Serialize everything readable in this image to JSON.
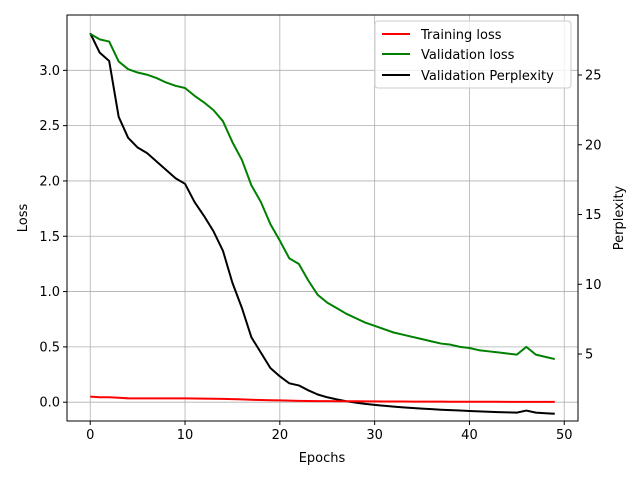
{
  "chart_data": {
    "type": "line",
    "xlabel": "Epochs",
    "ylabel": "Loss",
    "y2label": "Perplexity",
    "xlim": [
      -2.45,
      51.45
    ],
    "ylim": [
      -0.17,
      3.5
    ],
    "y2lim": [
      0.2,
      29.3
    ],
    "x_ticks": [
      0,
      10,
      20,
      30,
      40,
      50
    ],
    "y_ticks": [
      0.0,
      0.5,
      1.0,
      1.5,
      2.0,
      2.5,
      3.0
    ],
    "y2_ticks": [
      5,
      10,
      15,
      20,
      25
    ],
    "grid": true,
    "legend_position": "top-right",
    "x": [
      0,
      1,
      2,
      3,
      4,
      5,
      6,
      7,
      8,
      9,
      10,
      11,
      12,
      13,
      14,
      15,
      16,
      17,
      18,
      19,
      20,
      21,
      22,
      23,
      24,
      25,
      26,
      27,
      28,
      29,
      30,
      31,
      32,
      33,
      34,
      35,
      36,
      37,
      38,
      39,
      40,
      41,
      42,
      43,
      44,
      45,
      46,
      47,
      48,
      49
    ],
    "series": [
      {
        "name": "Training loss",
        "axis": "left",
        "color": "#ff0000",
        "values": [
          0.05,
          0.045,
          0.045,
          0.04,
          0.035,
          0.035,
          0.035,
          0.035,
          0.035,
          0.034,
          0.034,
          0.033,
          0.032,
          0.031,
          0.03,
          0.028,
          0.025,
          0.022,
          0.02,
          0.018,
          0.016,
          0.014,
          0.012,
          0.011,
          0.01,
          0.01,
          0.009,
          0.008,
          0.008,
          0.007,
          0.007,
          0.006,
          0.006,
          0.006,
          0.005,
          0.005,
          0.005,
          0.005,
          0.004,
          0.004,
          0.004,
          0.004,
          0.004,
          0.004,
          0.003,
          0.003,
          0.003,
          0.003,
          0.003,
          0.003
        ]
      },
      {
        "name": "Validation loss",
        "axis": "left",
        "color": "#008000",
        "values": [
          3.33,
          3.28,
          3.26,
          3.08,
          3.01,
          2.98,
          2.96,
          2.93,
          2.89,
          2.86,
          2.84,
          2.77,
          2.71,
          2.64,
          2.54,
          2.35,
          2.19,
          1.96,
          1.81,
          1.61,
          1.46,
          1.3,
          1.25,
          1.1,
          0.97,
          0.9,
          0.85,
          0.8,
          0.76,
          0.72,
          0.69,
          0.66,
          0.63,
          0.61,
          0.59,
          0.57,
          0.55,
          0.53,
          0.52,
          0.5,
          0.49,
          0.47,
          0.46,
          0.45,
          0.44,
          0.43,
          0.5,
          0.43,
          0.41,
          0.39
        ]
      },
      {
        "name": "Validation Perplexity",
        "axis": "right",
        "color": "#000000",
        "values": [
          28.0,
          26.6,
          26.0,
          22.0,
          20.5,
          19.8,
          19.4,
          18.8,
          18.2,
          17.6,
          17.2,
          15.9,
          14.9,
          13.8,
          12.4,
          10.1,
          8.3,
          6.2,
          5.1,
          4.0,
          3.4,
          2.9,
          2.75,
          2.4,
          2.1,
          1.9,
          1.75,
          1.62,
          1.52,
          1.43,
          1.36,
          1.29,
          1.23,
          1.18,
          1.13,
          1.09,
          1.05,
          1.01,
          0.98,
          0.95,
          0.92,
          0.89,
          0.86,
          0.84,
          0.82,
          0.8,
          0.95,
          0.8,
          0.76,
          0.72
        ]
      }
    ]
  }
}
